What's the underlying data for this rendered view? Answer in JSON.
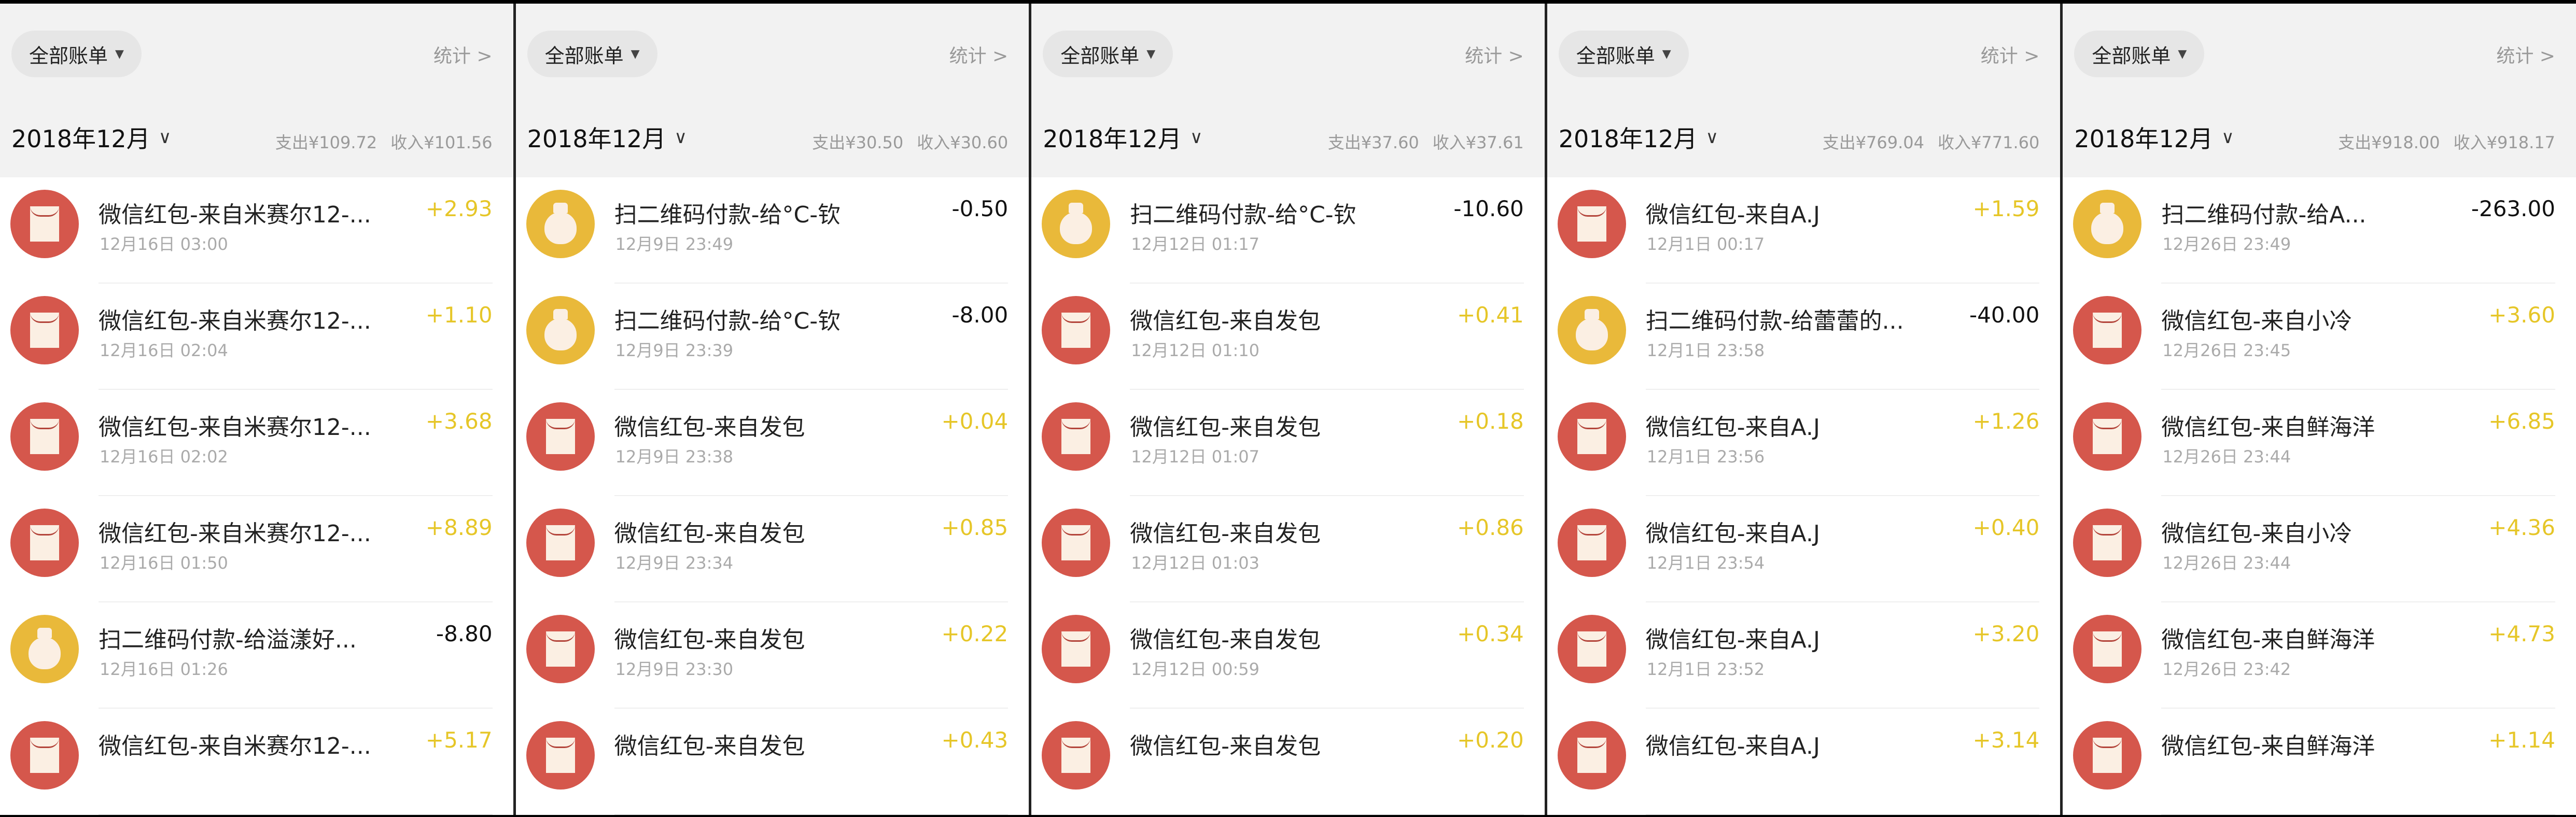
{
  "colors": {
    "red_icon": "#d5574c",
    "yellow_icon": "#e9b93a",
    "income": "#e6c628",
    "expense": "#111111",
    "header_bg": "#f2f2f2"
  },
  "panels": [
    {
      "filter": "全部账单",
      "stats": "统计 >",
      "month": "2018年12月",
      "expense": "支出¥109.72",
      "income": "收入¥101.56",
      "items": [
        {
          "icon": "red-envelope-icon",
          "title": "微信红包-来自米赛尔12-...",
          "date": "12月16日 03:00",
          "amount": "+2.93",
          "type": "in"
        },
        {
          "icon": "red-envelope-icon",
          "title": "微信红包-来自米赛尔12-...",
          "date": "12月16日 02:04",
          "amount": "+1.10",
          "type": "in"
        },
        {
          "icon": "red-envelope-icon",
          "title": "微信红包-来自米赛尔12-...",
          "date": "12月16日 02:02",
          "amount": "+3.68",
          "type": "in"
        },
        {
          "icon": "red-envelope-icon",
          "title": "微信红包-来自米赛尔12-...",
          "date": "12月16日 01:50",
          "amount": "+8.89",
          "type": "in"
        },
        {
          "icon": "money-bag-icon",
          "title": "扫二维码付款-给溢漾好...",
          "date": "12月16日 01:26",
          "amount": "-8.80",
          "type": "out"
        },
        {
          "icon": "red-envelope-icon",
          "title": "微信红包-来自米赛尔12-...",
          "date": "",
          "amount": "+5.17",
          "type": "in"
        }
      ]
    },
    {
      "filter": "全部账单",
      "stats": "统计 >",
      "month": "2018年12月",
      "expense": "支出¥30.50",
      "income": "收入¥30.60",
      "items": [
        {
          "icon": "money-bag-icon",
          "title": "扫二维码付款-给°C-钦",
          "date": "12月9日 23:49",
          "amount": "-0.50",
          "type": "out"
        },
        {
          "icon": "money-bag-icon",
          "title": "扫二维码付款-给°C-钦",
          "date": "12月9日 23:39",
          "amount": "-8.00",
          "type": "out"
        },
        {
          "icon": "red-envelope-icon",
          "title": "微信红包-来自发包",
          "date": "12月9日 23:38",
          "amount": "+0.04",
          "type": "in"
        },
        {
          "icon": "red-envelope-icon",
          "title": "微信红包-来自发包",
          "date": "12月9日 23:34",
          "amount": "+0.85",
          "type": "in"
        },
        {
          "icon": "red-envelope-icon",
          "title": "微信红包-来自发包",
          "date": "12月9日 23:30",
          "amount": "+0.22",
          "type": "in"
        },
        {
          "icon": "red-envelope-icon",
          "title": "微信红包-来自发包",
          "date": "",
          "amount": "+0.43",
          "type": "in"
        }
      ]
    },
    {
      "filter": "全部账单",
      "stats": "统计 >",
      "month": "2018年12月",
      "expense": "支出¥37.60",
      "income": "收入¥37.61",
      "items": [
        {
          "icon": "money-bag-icon",
          "title": "扫二维码付款-给°C-钦",
          "date": "12月12日 01:17",
          "amount": "-10.60",
          "type": "out"
        },
        {
          "icon": "red-envelope-icon",
          "title": "微信红包-来自发包",
          "date": "12月12日 01:10",
          "amount": "+0.41",
          "type": "in"
        },
        {
          "icon": "red-envelope-icon",
          "title": "微信红包-来自发包",
          "date": "12月12日 01:07",
          "amount": "+0.18",
          "type": "in"
        },
        {
          "icon": "red-envelope-icon",
          "title": "微信红包-来自发包",
          "date": "12月12日 01:03",
          "amount": "+0.86",
          "type": "in"
        },
        {
          "icon": "red-envelope-icon",
          "title": "微信红包-来自发包",
          "date": "12月12日 00:59",
          "amount": "+0.34",
          "type": "in"
        },
        {
          "icon": "red-envelope-icon",
          "title": "微信红包-来自发包",
          "date": "",
          "amount": "+0.20",
          "type": "in"
        }
      ]
    },
    {
      "filter": "全部账单",
      "stats": "统计 >",
      "month": "2018年12月",
      "expense": "支出¥769.04",
      "income": "收入¥771.60",
      "items": [
        {
          "icon": "red-envelope-icon",
          "title": "微信红包-来自A.J",
          "date": "12月1日 00:17",
          "amount": "+1.59",
          "type": "in"
        },
        {
          "icon": "money-bag-icon",
          "title": "扫二维码付款-给蕾蕾的...",
          "date": "12月1日 23:58",
          "amount": "-40.00",
          "type": "out"
        },
        {
          "icon": "red-envelope-icon",
          "title": "微信红包-来自A.J",
          "date": "12月1日 23:56",
          "amount": "+1.26",
          "type": "in"
        },
        {
          "icon": "red-envelope-icon",
          "title": "微信红包-来自A.J",
          "date": "12月1日 23:54",
          "amount": "+0.40",
          "type": "in"
        },
        {
          "icon": "red-envelope-icon",
          "title": "微信红包-来自A.J",
          "date": "12月1日 23:52",
          "amount": "+3.20",
          "type": "in"
        },
        {
          "icon": "red-envelope-icon",
          "title": "微信红包-来自A.J",
          "date": "",
          "amount": "+3.14",
          "type": "in"
        }
      ]
    },
    {
      "filter": "全部账单",
      "stats": "统计 >",
      "month": "2018年12月",
      "expense": "支出¥918.00",
      "income": "收入¥918.17",
      "items": [
        {
          "icon": "money-bag-icon",
          "title": "扫二维码付款-给A...",
          "date": "12月26日 23:49",
          "amount": "-263.00",
          "type": "out"
        },
        {
          "icon": "red-envelope-icon",
          "title": "微信红包-来自小冷",
          "date": "12月26日 23:45",
          "amount": "+3.60",
          "type": "in"
        },
        {
          "icon": "red-envelope-icon",
          "title": "微信红包-来自鲜海洋",
          "date": "12月26日 23:44",
          "amount": "+6.85",
          "type": "in"
        },
        {
          "icon": "red-envelope-icon",
          "title": "微信红包-来自小冷",
          "date": "12月26日 23:44",
          "amount": "+4.36",
          "type": "in"
        },
        {
          "icon": "red-envelope-icon",
          "title": "微信红包-来自鲜海洋",
          "date": "12月26日 23:42",
          "amount": "+4.73",
          "type": "in"
        },
        {
          "icon": "red-envelope-icon",
          "title": "微信红包-来自鲜海洋",
          "date": "",
          "amount": "+1.14",
          "type": "in"
        }
      ]
    }
  ]
}
